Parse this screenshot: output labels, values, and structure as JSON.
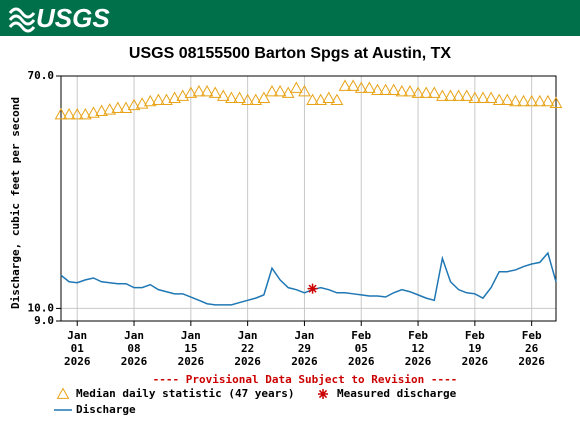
{
  "header": {
    "logo": "USGS"
  },
  "chart_data": {
    "type": "line",
    "title": "USGS 08155500 Barton Spgs at Austin, TX",
    "y_label": "Discharge, cubic feet per second",
    "note": "---- Provisional Data Subject to Revision ----",
    "log_y": true,
    "grid": true,
    "ylim": [
      9.0,
      70.0
    ],
    "yticks": [
      {
        "value": 9.0,
        "label": "9.0"
      },
      {
        "value": 10.0,
        "label": "10.0"
      },
      {
        "value": 70.0,
        "label": "70.0"
      }
    ],
    "xlim": [
      "2025-12-30",
      "2026-03-01"
    ],
    "xticks": [
      {
        "value": "2026-01-01",
        "label": [
          "Jan",
          "01",
          "2026"
        ]
      },
      {
        "value": "2026-01-08",
        "label": [
          "Jan",
          "08",
          "2026"
        ]
      },
      {
        "value": "2026-01-15",
        "label": [
          "Jan",
          "15",
          "2026"
        ]
      },
      {
        "value": "2026-01-22",
        "label": [
          "Jan",
          "22",
          "2026"
        ]
      },
      {
        "value": "2026-01-29",
        "label": [
          "Jan",
          "29",
          "2026"
        ]
      },
      {
        "value": "2026-02-05",
        "label": [
          "Feb",
          "05",
          "2026"
        ]
      },
      {
        "value": "2026-02-12",
        "label": [
          "Feb",
          "12",
          "2026"
        ]
      },
      {
        "value": "2026-02-19",
        "label": [
          "Feb",
          "19",
          "2026"
        ]
      },
      {
        "value": "2026-02-26",
        "label": [
          "Feb",
          "26",
          "2026"
        ]
      }
    ],
    "x": [
      "2025-12-30",
      "2025-12-31",
      "2026-01-01",
      "2026-01-02",
      "2026-01-03",
      "2026-01-04",
      "2026-01-05",
      "2026-01-06",
      "2026-01-07",
      "2026-01-08",
      "2026-01-09",
      "2026-01-10",
      "2026-01-11",
      "2026-01-12",
      "2026-01-13",
      "2026-01-14",
      "2026-01-15",
      "2026-01-16",
      "2026-01-17",
      "2026-01-18",
      "2026-01-19",
      "2026-01-20",
      "2026-01-21",
      "2026-01-22",
      "2026-01-23",
      "2026-01-24",
      "2026-01-25",
      "2026-01-26",
      "2026-01-27",
      "2026-01-28",
      "2026-01-29",
      "2026-01-30",
      "2026-01-31",
      "2026-02-01",
      "2026-02-02",
      "2026-02-03",
      "2026-02-04",
      "2026-02-05",
      "2026-02-06",
      "2026-02-07",
      "2026-02-08",
      "2026-02-09",
      "2026-02-10",
      "2026-02-11",
      "2026-02-12",
      "2026-02-13",
      "2026-02-14",
      "2026-02-15",
      "2026-02-16",
      "2026-02-17",
      "2026-02-18",
      "2026-02-19",
      "2026-02-20",
      "2026-02-21",
      "2026-02-22",
      "2026-02-23",
      "2026-02-24",
      "2026-02-25",
      "2026-02-26",
      "2026-02-27",
      "2026-02-28",
      "2026-03-01"
    ],
    "series": [
      {
        "name": "Median daily statistic (47 years)",
        "marker": "triangle",
        "color": "#e8a317",
        "values": [
          50.7,
          50.7,
          50.7,
          50.7,
          51.4,
          52.2,
          52.8,
          53.5,
          53.5,
          54.8,
          55.5,
          56.6,
          57.2,
          57.2,
          58.2,
          59.2,
          60.7,
          61.5,
          61.5,
          60.7,
          59.2,
          58.2,
          58.2,
          57.2,
          57.2,
          58.2,
          61.5,
          61.5,
          60.7,
          63.3,
          61.5,
          57.2,
          57.2,
          58.2,
          57.2,
          64.4,
          64.4,
          63.3,
          63.3,
          62.2,
          62.2,
          62.2,
          61.5,
          61.5,
          60.7,
          60.7,
          60.7,
          59.2,
          59.2,
          59.2,
          59.2,
          58.2,
          58.2,
          58.2,
          57.2,
          57.2,
          56.6,
          56.6,
          56.6,
          56.6,
          56.6,
          55.8
        ]
      },
      {
        "name": "Discharge",
        "marker": "line",
        "color": "#1f77b4",
        "values": [
          13.2,
          12.5,
          12.4,
          12.7,
          12.9,
          12.5,
          12.4,
          12.3,
          12.3,
          11.9,
          11.9,
          12.2,
          11.7,
          11.5,
          11.3,
          11.3,
          11.0,
          10.7,
          10.4,
          10.3,
          10.3,
          10.3,
          10.5,
          10.7,
          10.9,
          11.2,
          14.0,
          12.7,
          11.9,
          11.7,
          11.4,
          11.7,
          11.9,
          11.7,
          11.4,
          11.4,
          11.3,
          11.2,
          11.1,
          11.1,
          11.0,
          11.4,
          11.7,
          11.5,
          11.2,
          10.9,
          10.7,
          15.2,
          12.5,
          11.7,
          11.4,
          11.3,
          10.9,
          11.9,
          13.6,
          13.6,
          13.8,
          14.2,
          14.5,
          14.7,
          15.9,
          12.5
        ]
      }
    ],
    "measured": {
      "name": "Measured discharge",
      "marker": "asterisk",
      "color": "#cc0000",
      "x": [
        "2026-01-30"
      ],
      "values": [
        11.8
      ]
    }
  }
}
